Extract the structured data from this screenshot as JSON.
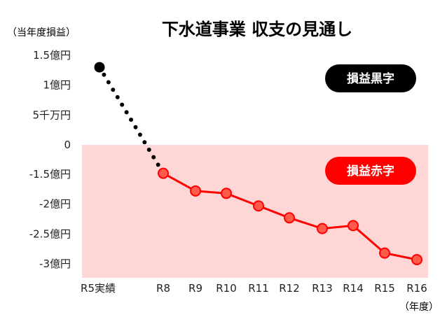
{
  "chart_data": {
    "type": "line",
    "title": "下水道事業 収支の見通し",
    "y_unit_label": "（当年度損益）",
    "x_unit_label": "（年度）",
    "categories": [
      "R5実績",
      "R8",
      "R9",
      "R10",
      "R11",
      "R12",
      "R13",
      "R14",
      "R15",
      "R16"
    ],
    "y_ticks": [
      {
        "value": 1.5,
        "label": "1.5億円"
      },
      {
        "value": 1.0,
        "label": "1億円"
      },
      {
        "value": 0.5,
        "label": "5千万円"
      },
      {
        "value": 0,
        "label": "0"
      },
      {
        "value": -1.5,
        "label": "-1.5億円"
      },
      {
        "value": -2.0,
        "label": "-2億円"
      },
      {
        "value": -2.5,
        "label": "-2.5億円"
      },
      {
        "value": -3.0,
        "label": "-3億円"
      }
    ],
    "series": [
      {
        "values": [
          1.3,
          -1.45,
          -1.78,
          -1.82,
          -2.03,
          -2.23,
          -2.41,
          -2.36,
          -2.82,
          -2.93
        ],
        "color": "#ff0000",
        "actual_color": "#000000"
      }
    ],
    "regions": {
      "surplus_label": "損益黒字",
      "deficit_label": "損益赤字",
      "deficit_fill": "#ffd6d6"
    },
    "grid": false
  }
}
